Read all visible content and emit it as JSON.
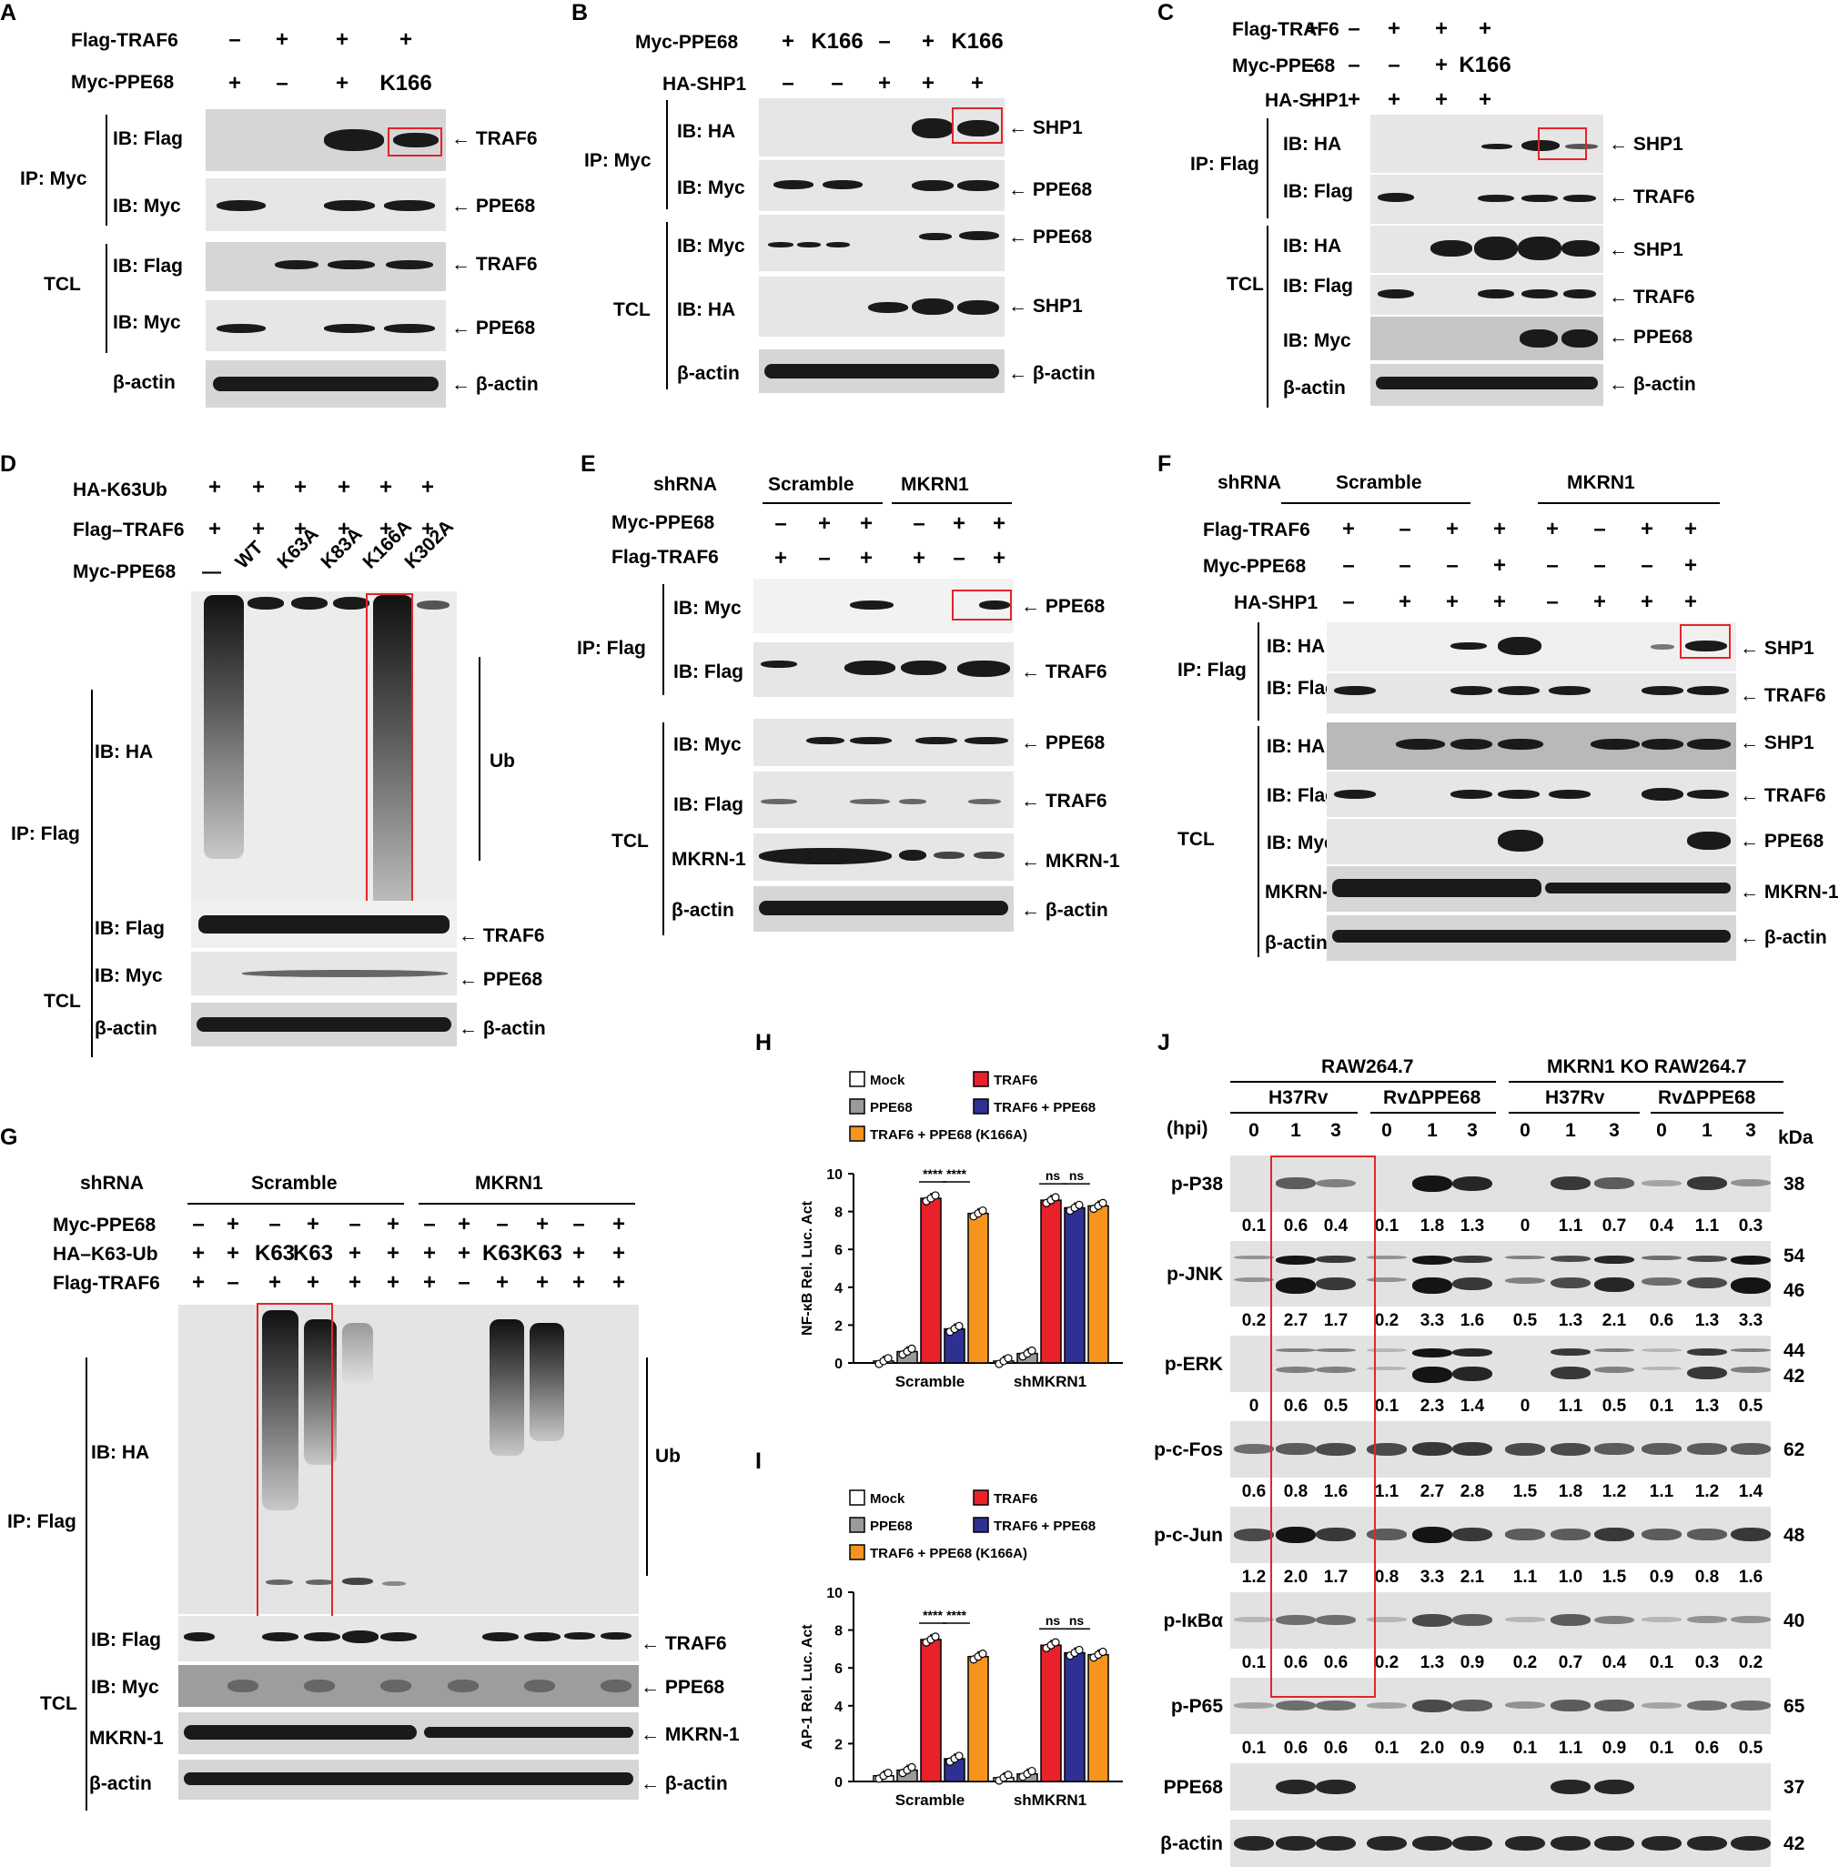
{
  "panels": {
    "A": {
      "label": "A",
      "rows": [
        "Flag-TRAF6",
        "Myc-PPE68"
      ],
      "flag_traf6": [
        "–",
        "+",
        "+",
        "+"
      ],
      "myc_ppe68": [
        "+",
        "–",
        "+",
        "K166"
      ],
      "ip": "IP: Myc",
      "tcl": "TCL",
      "ib_flag": "IB: Flag",
      "ib_myc": "IB: Myc",
      "actin": "β-actin",
      "arrows": [
        "TRAF6",
        "PPE68",
        "TRAF6",
        "PPE68",
        "β-actin"
      ]
    },
    "B": {
      "label": "B",
      "rows": [
        "Myc-PPE68",
        "HA-SHP1"
      ],
      "myc_ppe68": [
        "+",
        "K166",
        "–",
        "+",
        "K166"
      ],
      "ha_shp1": [
        "–",
        "–",
        "+",
        "+",
        "+"
      ],
      "ip": "IP: Myc",
      "tcl": "TCL",
      "ib_ha": "IB: HA",
      "ib_myc": "IB: Myc",
      "actin": "β-actin",
      "arrows": [
        "SHP1",
        "PPE68",
        "PPE68",
        "SHP1",
        "β-actin"
      ]
    },
    "C": {
      "label": "C",
      "rows": [
        "Flag-TRAF6",
        "Myc-PPE68",
        "HA-SHP1"
      ],
      "flag_traf6": [
        "+",
        "–",
        "+",
        "+",
        "+"
      ],
      "myc_ppe68": [
        "–",
        "–",
        "–",
        "+",
        "K166"
      ],
      "ha_shp1": [
        "–",
        "+",
        "+",
        "+",
        "+"
      ],
      "ip": "IP: Flag",
      "tcl": "TCL",
      "ib_ha": "IB: HA",
      "ib_flag": "IB: Flag",
      "ib_myc": "IB: Myc",
      "actin": "β-actin",
      "arrows": [
        "SHP1",
        "TRAF6",
        "SHP1",
        "TRAF6",
        "PPE68",
        "β-actin"
      ]
    },
    "D": {
      "label": "D",
      "rows": [
        "HA-K63Ub",
        "Flag–TRAF6",
        "Myc-PPE68"
      ],
      "plus": "+",
      "myc_ppe68": [
        "—",
        "WT",
        "K63A",
        "K83A",
        "K166A",
        "K302A"
      ],
      "ip": "IP: Flag",
      "tcl": "TCL",
      "ib_ha": "IB: HA",
      "ib_flag": "IB: Flag",
      "ib_myc": "IB: Myc",
      "actin": "β-actin",
      "ub": "Ub",
      "arrows": [
        "TRAF6",
        "PPE68",
        "β-actin"
      ]
    },
    "E": {
      "label": "E",
      "shrna": "shRNA",
      "groups": [
        "Scramble",
        "MKRN1"
      ],
      "rows": [
        "Myc-PPE68",
        "Flag-TRAF6"
      ],
      "myc_ppe68": [
        "–",
        "+",
        "+",
        "–",
        "+",
        "+"
      ],
      "flag_traf6": [
        "+",
        "–",
        "+",
        "+",
        "–",
        "+"
      ],
      "ip": "IP: Flag",
      "tcl": "TCL",
      "ib_myc": "IB: Myc",
      "ib_flag": "IB: Flag",
      "mkrn": "MKRN-1",
      "actin": "β-actin",
      "arrows": [
        "PPE68",
        "TRAF6",
        "PPE68",
        "TRAF6",
        "MKRN-1",
        "β-actin"
      ]
    },
    "F": {
      "label": "F",
      "shrna": "shRNA",
      "groups": [
        "Scramble",
        "MKRN1"
      ],
      "rows": [
        "Flag-TRAF6",
        "Myc-PPE68",
        "HA-SHP1"
      ],
      "flag_traf6": [
        "+",
        "–",
        "+",
        "+",
        "+",
        "–",
        "+",
        "+"
      ],
      "myc_ppe68": [
        "–",
        "–",
        "–",
        "+",
        "–",
        "–",
        "–",
        "+"
      ],
      "ha_shp1": [
        "–",
        "+",
        "+",
        "+",
        "–",
        "+",
        "+",
        "+"
      ],
      "ip": "IP: Flag",
      "tcl": "TCL",
      "ib_ha": "IB: HA",
      "ib_flag": "IB: Flag",
      "ib_myc": "IB: Myc",
      "mkrn": "MKRN-1",
      "actin": "β-actin",
      "arrows": [
        "SHP1",
        "TRAF6",
        "SHP1",
        "TRAF6",
        "PPE68",
        "MKRN-1",
        "β-actin"
      ]
    },
    "G": {
      "label": "G",
      "shrna": "shRNA",
      "groups": [
        "Scramble",
        "MKRN1"
      ],
      "rows": [
        "Myc-PPE68",
        "HA–K63-Ub",
        "Flag-TRAF6"
      ],
      "myc_ppe68": [
        "–",
        "+",
        "–",
        "+",
        "–",
        "+",
        "–",
        "+",
        "–",
        "+",
        "–",
        "+"
      ],
      "ha_k63": [
        "+",
        "+",
        "K63",
        "K63",
        "+",
        "+",
        "+",
        "+",
        "K63",
        "K63",
        "+",
        "+"
      ],
      "flag_traf6": [
        "+",
        "–",
        "+",
        "+",
        "+",
        "+",
        "+",
        "–",
        "+",
        "+",
        "+",
        "+"
      ],
      "ip": "IP: Flag",
      "tcl": "TCL",
      "ib_ha": "IB: HA",
      "ib_flag": "IB: Flag",
      "ib_myc": "IB: Myc",
      "mkrn": "MKRN-1",
      "actin": "β-actin",
      "ub": "Ub",
      "arrows": [
        "TRAF6",
        "PPE68",
        "MKRN-1",
        "β-actin"
      ]
    },
    "J": {
      "label": "J",
      "cell_groups": [
        "RAW264.7",
        "MKRN1 KO RAW264.7"
      ],
      "strains": [
        "H37Rv",
        "RvΔPPE68",
        "H37Rv",
        "RvΔPPE68"
      ],
      "hpi": "(hpi)",
      "times": [
        "0",
        "1",
        "3",
        "0",
        "1",
        "3",
        "0",
        "1",
        "3",
        "0",
        "1",
        "3"
      ],
      "kda": "kDa",
      "blots": [
        {
          "name": "p-P38",
          "kda": "38",
          "values": [
            "0.1",
            "0.6",
            "0.4",
            "0.1",
            "1.8",
            "1.3",
            "0",
            "1.1",
            "0.7",
            "0.4",
            "1.1",
            "0.3"
          ]
        },
        {
          "name": "p-JNK",
          "kda": "54",
          "kda2": "46",
          "values": [
            "0.2",
            "2.7",
            "1.7",
            "0.2",
            "3.3",
            "1.6",
            "0.5",
            "1.3",
            "2.1",
            "0.6",
            "1.3",
            "3.3"
          ]
        },
        {
          "name": "p-ERK",
          "kda": "44",
          "kda2": "42",
          "values": [
            "0",
            "0.6",
            "0.5",
            "0.1",
            "2.3",
            "1.4",
            "0",
            "1.1",
            "0.5",
            "0.1",
            "1.3",
            "0.5"
          ]
        },
        {
          "name": "p-c-Fos",
          "kda": "62",
          "values": [
            "0.6",
            "0.8",
            "1.6",
            "1.1",
            "2.7",
            "2.8",
            "1.5",
            "1.8",
            "1.2",
            "1.1",
            "1.2",
            "1.4"
          ]
        },
        {
          "name": "p-c-Jun",
          "kda": "48",
          "values": [
            "1.2",
            "2.0",
            "1.7",
            "0.8",
            "3.3",
            "2.1",
            "1.1",
            "1.0",
            "1.5",
            "0.9",
            "0.8",
            "1.6"
          ]
        },
        {
          "name": "p-IκBα",
          "kda": "40",
          "values": [
            "0.1",
            "0.6",
            "0.6",
            "0.2",
            "1.3",
            "0.9",
            "0.2",
            "0.7",
            "0.4",
            "0.1",
            "0.3",
            "0.2"
          ]
        },
        {
          "name": "p-P65",
          "kda": "65",
          "values": [
            "0.1",
            "0.6",
            "0.6",
            "0.1",
            "2.0",
            "0.9",
            "0.1",
            "1.1",
            "0.9",
            "0.1",
            "0.6",
            "0.5"
          ]
        },
        {
          "name": "PPE68",
          "kda": "37",
          "values": []
        },
        {
          "name": "β-actin",
          "kda": "42",
          "values": []
        }
      ]
    }
  },
  "chart_data": [
    {
      "panel": "H",
      "type": "bar",
      "legend": [
        "Mock",
        "TRAF6",
        "PPE68",
        "TRAF6 + PPE68",
        "TRAF6 + PPE68 (K166A)"
      ],
      "ylabel": "NF-κB Rel. Luc. Act",
      "ylim": [
        0,
        10
      ],
      "yticks": [
        "0",
        "2",
        "4",
        "6",
        "8",
        "10"
      ],
      "categories": [
        "Scramble",
        "shMKRN1"
      ],
      "series": [
        {
          "name": "Mock",
          "color": "#ffffff",
          "values": [
            0.1,
            0.1
          ]
        },
        {
          "name": "PPE68",
          "color": "#9a9a9a",
          "values": [
            0.6,
            0.5
          ]
        },
        {
          "name": "TRAF6",
          "color": "#e8212b",
          "values": [
            8.7,
            8.6
          ]
        },
        {
          "name": "TRAF6 + PPE68",
          "color": "#2e3192",
          "values": [
            1.8,
            8.2
          ]
        },
        {
          "name": "TRAF6 + PPE68 (K166A)",
          "color": "#f7941d",
          "values": [
            7.9,
            8.3
          ]
        }
      ],
      "sig": [
        "****",
        "****",
        "ns",
        "ns"
      ]
    },
    {
      "panel": "I",
      "type": "bar",
      "legend": [
        "Mock",
        "TRAF6",
        "PPE68",
        "TRAF6 + PPE68",
        "TRAF6 + PPE68 (K166A)"
      ],
      "ylabel": "AP-1 Rel. Luc. Act",
      "ylim": [
        0,
        10
      ],
      "yticks": [
        "0",
        "2",
        "4",
        "6",
        "8",
        "10"
      ],
      "categories": [
        "Scramble",
        "shMKRN1"
      ],
      "series": [
        {
          "name": "Mock",
          "color": "#ffffff",
          "values": [
            0.3,
            0.2
          ]
        },
        {
          "name": "PPE68",
          "color": "#9a9a9a",
          "values": [
            0.6,
            0.4
          ]
        },
        {
          "name": "TRAF6",
          "color": "#e8212b",
          "values": [
            7.5,
            7.2
          ]
        },
        {
          "name": "TRAF6 + PPE68",
          "color": "#2e3192",
          "values": [
            1.2,
            6.8
          ]
        },
        {
          "name": "TRAF6 + PPE68 (K166A)",
          "color": "#f7941d",
          "values": [
            6.6,
            6.7
          ]
        }
      ],
      "sig": [
        "****",
        "****",
        "ns",
        "ns"
      ]
    }
  ]
}
